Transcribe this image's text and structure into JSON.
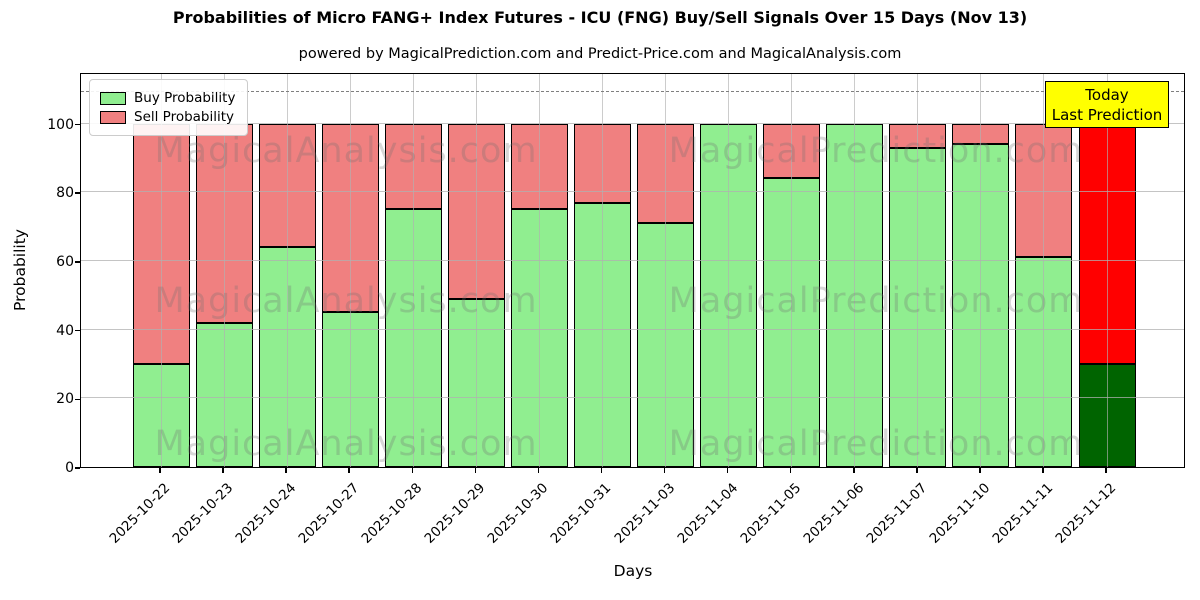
{
  "title": "Probabilities of Micro FANG+ Index Futures - ICU (FNG) Buy/Sell Signals Over 15 Days (Nov 13)",
  "subtitle": "powered by MagicalPrediction.com and Predict-Price.com and MagicalAnalysis.com",
  "legend": {
    "buy_label": "Buy Probability",
    "sell_label": "Sell Probability"
  },
  "annotation_box": {
    "line1": "Today",
    "line2": "Last Prediction"
  },
  "axes": {
    "xlabel": "Days",
    "ylabel": "Probability",
    "yticks": [
      0,
      20,
      40,
      60,
      80,
      100
    ],
    "ylim": [
      0,
      115
    ],
    "dashed_line_y": 110,
    "grid": "on"
  },
  "watermarks": {
    "left_text": "MagicalAnalysis.com",
    "right_text": "MagicalPrediction.com"
  },
  "colors": {
    "buy": "#90ee90",
    "sell": "#f08080",
    "today_buy": "#006400",
    "today_sell": "#ff0000",
    "annotation_bg": "#ffff00",
    "grid": "#b0b0b0",
    "dashed_line": "#7f7f7f"
  },
  "chart_data": {
    "type": "bar",
    "stacked": true,
    "title": "Probabilities of Micro FANG+ Index Futures - ICU (FNG) Buy/Sell Signals Over 15 Days (Nov 13)",
    "xlabel": "Days",
    "ylabel": "Probability",
    "ylim": [
      0,
      115
    ],
    "legend_position": "upper left",
    "categories": [
      "2025-10-22",
      "2025-10-23",
      "2025-10-24",
      "2025-10-27",
      "2025-10-28",
      "2025-10-29",
      "2025-10-30",
      "2025-10-31",
      "2025-11-03",
      "2025-11-04",
      "2025-11-05",
      "2025-11-06",
      "2025-11-07",
      "2025-11-10",
      "2025-11-11",
      "2025-11-12"
    ],
    "series": [
      {
        "name": "Buy Probability",
        "color": "#90ee90",
        "values": [
          30,
          42,
          64,
          45,
          75,
          49,
          75,
          77,
          71,
          100,
          84,
          100,
          93,
          94,
          61,
          30
        ]
      },
      {
        "name": "Sell Probability",
        "color": "#f08080",
        "values": [
          70,
          58,
          36,
          55,
          25,
          51,
          25,
          23,
          29,
          0,
          16,
          0,
          7,
          6,
          39,
          70
        ]
      }
    ],
    "today_bar": {
      "index": 15,
      "date": "2025-11-12",
      "buy": 30,
      "sell": 70,
      "buy_color": "#006400",
      "sell_color": "#ff0000"
    }
  }
}
